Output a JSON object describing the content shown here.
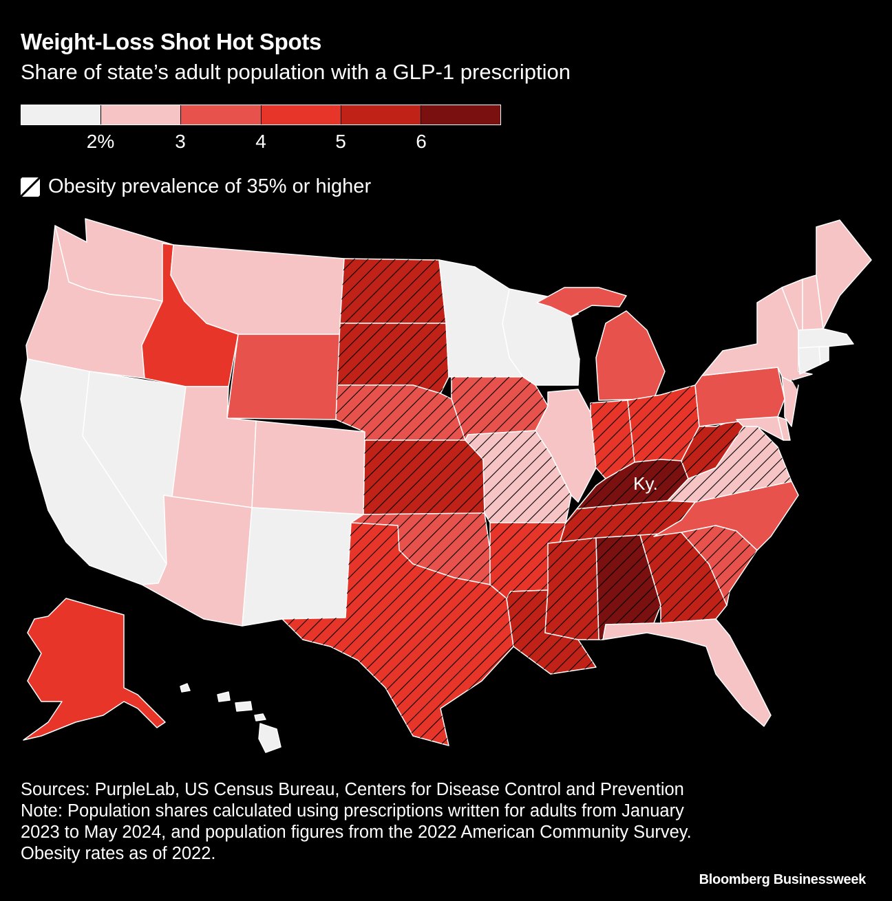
{
  "title": "Weight-Loss Shot Hot Spots",
  "subtitle": "Share of state’s adult population with a GLP-1 prescription",
  "legend": {
    "colors": [
      "#f0f0f0",
      "#f6c4c4",
      "#e8524c",
      "#e8352a",
      "#c02218",
      "#7a1010"
    ],
    "ticks": [
      "2%",
      "3",
      "4",
      "5",
      "6"
    ],
    "hatch_label": "Obesity prevalence of 35% or higher"
  },
  "map_label": "Ky.",
  "sources": "Sources: PurpleLab, US Census Bureau, Centers for Disease Control and Prevention",
  "note": "Note: Population shares calculated using prescriptions written for adults from January 2023 to May 2024, and population figures from the 2022 American Community Survey. Obesity rates as of 2022.",
  "credit": "Bloomberg Businessweek",
  "states": [
    {
      "name": "Washington",
      "bin": 1,
      "hatch": false
    },
    {
      "name": "Oregon",
      "bin": 1,
      "hatch": false
    },
    {
      "name": "California",
      "bin": 0,
      "hatch": false
    },
    {
      "name": "Nevada",
      "bin": 0,
      "hatch": false
    },
    {
      "name": "Idaho",
      "bin": 3,
      "hatch": false
    },
    {
      "name": "Montana",
      "bin": 1,
      "hatch": false
    },
    {
      "name": "Wyoming",
      "bin": 2,
      "hatch": false
    },
    {
      "name": "Utah",
      "bin": 1,
      "hatch": false
    },
    {
      "name": "Arizona",
      "bin": 1,
      "hatch": false
    },
    {
      "name": "Colorado",
      "bin": 1,
      "hatch": false
    },
    {
      "name": "New Mexico",
      "bin": 0,
      "hatch": false
    },
    {
      "name": "North Dakota",
      "bin": 4,
      "hatch": true
    },
    {
      "name": "South Dakota",
      "bin": 4,
      "hatch": true
    },
    {
      "name": "Nebraska",
      "bin": 2,
      "hatch": true
    },
    {
      "name": "Kansas",
      "bin": 4,
      "hatch": true
    },
    {
      "name": "Oklahoma",
      "bin": 2,
      "hatch": true
    },
    {
      "name": "Texas",
      "bin": 3,
      "hatch": true
    },
    {
      "name": "Minnesota",
      "bin": 0,
      "hatch": false
    },
    {
      "name": "Iowa",
      "bin": 2,
      "hatch": true
    },
    {
      "name": "Missouri",
      "bin": 1,
      "hatch": true
    },
    {
      "name": "Arkansas",
      "bin": 3,
      "hatch": true
    },
    {
      "name": "Louisiana",
      "bin": 4,
      "hatch": true
    },
    {
      "name": "Wisconsin",
      "bin": 0,
      "hatch": false
    },
    {
      "name": "Illinois",
      "bin": 1,
      "hatch": false
    },
    {
      "name": "Michigan",
      "bin": 2,
      "hatch": false
    },
    {
      "name": "Indiana",
      "bin": 3,
      "hatch": true
    },
    {
      "name": "Ohio",
      "bin": 3,
      "hatch": true
    },
    {
      "name": "Kentucky",
      "bin": 5,
      "hatch": true
    },
    {
      "name": "Tennessee",
      "bin": 4,
      "hatch": true
    },
    {
      "name": "Mississippi",
      "bin": 4,
      "hatch": true
    },
    {
      "name": "Alabama",
      "bin": 5,
      "hatch": true
    },
    {
      "name": "Georgia",
      "bin": 4,
      "hatch": true
    },
    {
      "name": "Florida",
      "bin": 1,
      "hatch": false
    },
    {
      "name": "South Carolina",
      "bin": 2,
      "hatch": true
    },
    {
      "name": "North Carolina",
      "bin": 2,
      "hatch": false
    },
    {
      "name": "Virginia",
      "bin": 1,
      "hatch": true
    },
    {
      "name": "West Virginia",
      "bin": 4,
      "hatch": true
    },
    {
      "name": "Pennsylvania",
      "bin": 2,
      "hatch": false
    },
    {
      "name": "New York",
      "bin": 1,
      "hatch": false
    },
    {
      "name": "New Jersey",
      "bin": 1,
      "hatch": false
    },
    {
      "name": "Maryland",
      "bin": 1,
      "hatch": false
    },
    {
      "name": "Delaware",
      "bin": 1,
      "hatch": false
    },
    {
      "name": "Vermont",
      "bin": 1,
      "hatch": false
    },
    {
      "name": "New Hampshire",
      "bin": 1,
      "hatch": false
    },
    {
      "name": "Maine",
      "bin": 1,
      "hatch": false
    },
    {
      "name": "Massachusetts",
      "bin": 0,
      "hatch": false
    },
    {
      "name": "Connecticut",
      "bin": 0,
      "hatch": false
    },
    {
      "name": "Rhode Island",
      "bin": 0,
      "hatch": false
    },
    {
      "name": "Alaska",
      "bin": 3,
      "hatch": false
    },
    {
      "name": "Hawaii",
      "bin": 0,
      "hatch": false
    }
  ]
}
